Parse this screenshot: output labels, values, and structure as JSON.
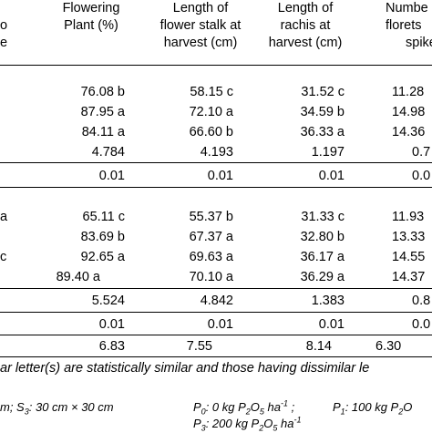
{
  "headers": {
    "col0_line1": "o",
    "col0_line2": "e",
    "col1_line1": "Flowering",
    "col1_line2": "Plant (%)",
    "col2_line1": "Length of",
    "col2_line2": "flower stalk at",
    "col2_line3": "harvest (cm)",
    "col3_line1": "Length of",
    "col3_line2": "rachis at",
    "col3_line3": "harvest (cm)",
    "col4_line1": "Numbe",
    "col4_line2": "florets",
    "col4_line3": "spike"
  },
  "section1": {
    "rows": [
      {
        "label": "",
        "c1": "76.08 b",
        "c2": "58.15 c",
        "c3": "31.52 c",
        "c4": "11.28"
      },
      {
        "label": "",
        "c1": "87.95 a",
        "c2": "72.10 a",
        "c3": "34.59 b",
        "c4": "14.98"
      },
      {
        "label": "",
        "c1": "84.11 a",
        "c2": "66.60 b",
        "c3": "36.33 a",
        "c4": "14.36"
      }
    ],
    "lsd": {
      "c1": "4.784",
      "c2": "4.193",
      "c3": "1.197",
      "c4": "0.7"
    },
    "sig": {
      "c1": "0.01",
      "c2": "0.01",
      "c3": "0.01",
      "c4": "0.0"
    }
  },
  "section2": {
    "rows": [
      {
        "label": "a",
        "c1": "65.11 c",
        "c2": "55.37 b",
        "c3": "31.33 c",
        "c4": "11.93"
      },
      {
        "label": "",
        "c1": "83.69 b",
        "c2": "67.37 a",
        "c3": "32.80 b",
        "c4": "13.33"
      },
      {
        "label": "c",
        "c1": "92.65 a",
        "c2": "69.63 a",
        "c3": "36.17 a",
        "c4": "14.55"
      },
      {
        "label": "",
        "c1": "89.40 a",
        "c2": "70.10 a",
        "c3": "36.29 a",
        "c4": "14.37"
      }
    ],
    "lsd": {
      "c1": "5.524",
      "c2": "4.842",
      "c3": "1.383",
      "c4": "0.8"
    },
    "sig": {
      "c1": "0.01",
      "c2": "0.01",
      "c3": "0.01",
      "c4": "0.0"
    }
  },
  "cv": {
    "c1": "6.83",
    "c2": "7.55",
    "c3": "8.14",
    "c4": "6.30"
  },
  "footnote": "ar letter(s) are statistically similar and those having dissimilar le",
  "legend": {
    "s_prefix": "m; S",
    "s_sub": "3",
    "s_rest": ": 30 cm × 30 cm",
    "p0_a": "P",
    "p0_sub": "0",
    "p0_b": ": 0 kg P",
    "p0_sub2": "2",
    "p0_c": "O",
    "p0_sub3": "5",
    "p0_d": " ha",
    "p0_sup": "-1",
    "p0_e": " ;",
    "p1_a": "P",
    "p1_sub": "1",
    "p1_b": ": 100 kg P",
    "p1_sub2": "2",
    "p1_c": "O",
    "p3_a": "P",
    "p3_sub": "3",
    "p3_b": ": 200 kg P",
    "p3_sub2": "2",
    "p3_c": "O",
    "p3_sub3": "5",
    "p3_d": " ha",
    "p3_sup": "-1"
  }
}
